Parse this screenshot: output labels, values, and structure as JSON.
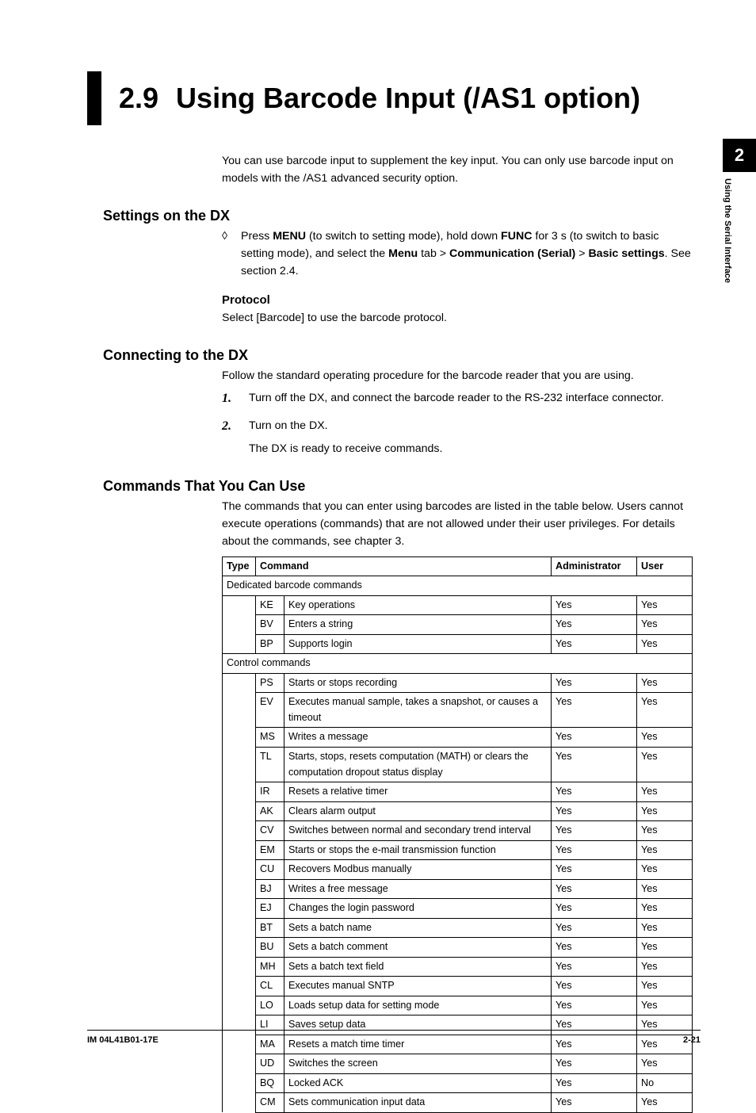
{
  "sidebar": {
    "chapter_num": "2",
    "chapter_title": "Using the Serial Interface"
  },
  "heading": {
    "num": "2.9",
    "title": "Using Barcode Input (/AS1 option)"
  },
  "intro": "You can use barcode input to supplement the key input. You can only use barcode input on models with the /AS1 advanced security option.",
  "settings": {
    "title": "Settings on the DX",
    "bullet_pre": "Press ",
    "menu_word": "MENU",
    "bullet_mid1": " (to switch to setting mode), hold down ",
    "func_word": "FUNC",
    "bullet_mid2": " for 3 s (to switch to basic setting mode), and select the ",
    "menu_tab": "Menu",
    "bullet_gt1": " tab > ",
    "comm_serial": "Communication (Serial)",
    "bullet_gt2": " > ",
    "basic_settings": "Basic settings",
    "bullet_end": ". See section 2.4.",
    "protocol_head": "Protocol",
    "protocol_body": "Select [Barcode] to use the barcode protocol."
  },
  "connecting": {
    "title": "Connecting to the DX",
    "intro": "Follow the standard operating procedure for the barcode reader that you are using.",
    "step1_num": "1.",
    "step1": "Turn off the DX, and connect the barcode reader to the RS-232 interface connector.",
    "step2_num": "2.",
    "step2": "Turn on the DX.",
    "step2_sub": "The DX is ready to receive commands."
  },
  "commands": {
    "title": "Commands That You Can Use",
    "intro": "The commands that you can enter using barcodes are listed in the table below. Users cannot execute operations (commands) that are not allowed under their user privileges. For details about the commands, see chapter 3.",
    "headers": {
      "type": "Type",
      "command": "Command",
      "admin": "Administrator",
      "user": "User"
    },
    "group1": "Dedicated barcode commands",
    "group2": "Control commands",
    "rows1": [
      {
        "code": "KE",
        "desc": "Key operations",
        "admin": "Yes",
        "user": "Yes"
      },
      {
        "code": "BV",
        "desc": "Enters a string",
        "admin": "Yes",
        "user": "Yes"
      },
      {
        "code": "BP",
        "desc": "Supports login",
        "admin": "Yes",
        "user": "Yes"
      }
    ],
    "rows2": [
      {
        "code": "PS",
        "desc": "Starts or stops recording",
        "admin": "Yes",
        "user": "Yes"
      },
      {
        "code": "EV",
        "desc": "Executes manual sample, takes a snapshot, or causes a timeout",
        "admin": "Yes",
        "user": "Yes"
      },
      {
        "code": "MS",
        "desc": "Writes a message",
        "admin": "Yes",
        "user": "Yes"
      },
      {
        "code": "TL",
        "desc": "Starts, stops, resets computation (MATH) or clears the computation dropout status display",
        "admin": "Yes",
        "user": "Yes"
      },
      {
        "code": "IR",
        "desc": "Resets a relative timer",
        "admin": "Yes",
        "user": "Yes"
      },
      {
        "code": "AK",
        "desc": "Clears alarm output",
        "admin": "Yes",
        "user": "Yes"
      },
      {
        "code": "CV",
        "desc": "Switches between normal and secondary trend interval",
        "admin": "Yes",
        "user": "Yes"
      },
      {
        "code": "EM",
        "desc": "Starts or stops the e-mail transmission function",
        "admin": "Yes",
        "user": "Yes"
      },
      {
        "code": "CU",
        "desc": "Recovers Modbus manually",
        "admin": "Yes",
        "user": "Yes"
      },
      {
        "code": "BJ",
        "desc": "Writes a free message",
        "admin": "Yes",
        "user": "Yes"
      },
      {
        "code": "EJ",
        "desc": "Changes the login password",
        "admin": "Yes",
        "user": "Yes"
      },
      {
        "code": "BT",
        "desc": "Sets a batch name",
        "admin": "Yes",
        "user": "Yes"
      },
      {
        "code": "BU",
        "desc": "Sets a batch comment",
        "admin": "Yes",
        "user": "Yes"
      },
      {
        "code": "MH",
        "desc": "Sets a batch text field",
        "admin": "Yes",
        "user": "Yes"
      },
      {
        "code": "CL",
        "desc": "Executes manual SNTP",
        "admin": "Yes",
        "user": "Yes"
      },
      {
        "code": "LO",
        "desc": "Loads setup data for setting mode",
        "admin": "Yes",
        "user": "Yes"
      },
      {
        "code": "LI",
        "desc": "Saves setup data",
        "admin": "Yes",
        "user": "Yes"
      },
      {
        "code": "MA",
        "desc": "Resets a match time timer",
        "admin": "Yes",
        "user": "Yes"
      },
      {
        "code": "UD",
        "desc": "Switches the screen",
        "admin": "Yes",
        "user": "Yes"
      },
      {
        "code": "BQ",
        "desc": "Locked ACK",
        "admin": "Yes",
        "user": "No"
      },
      {
        "code": "CM",
        "desc": "Sets communication input data",
        "admin": "Yes",
        "user": "Yes"
      }
    ]
  },
  "footer": {
    "left": "IM 04L41B01-17E",
    "right": "2-21"
  }
}
